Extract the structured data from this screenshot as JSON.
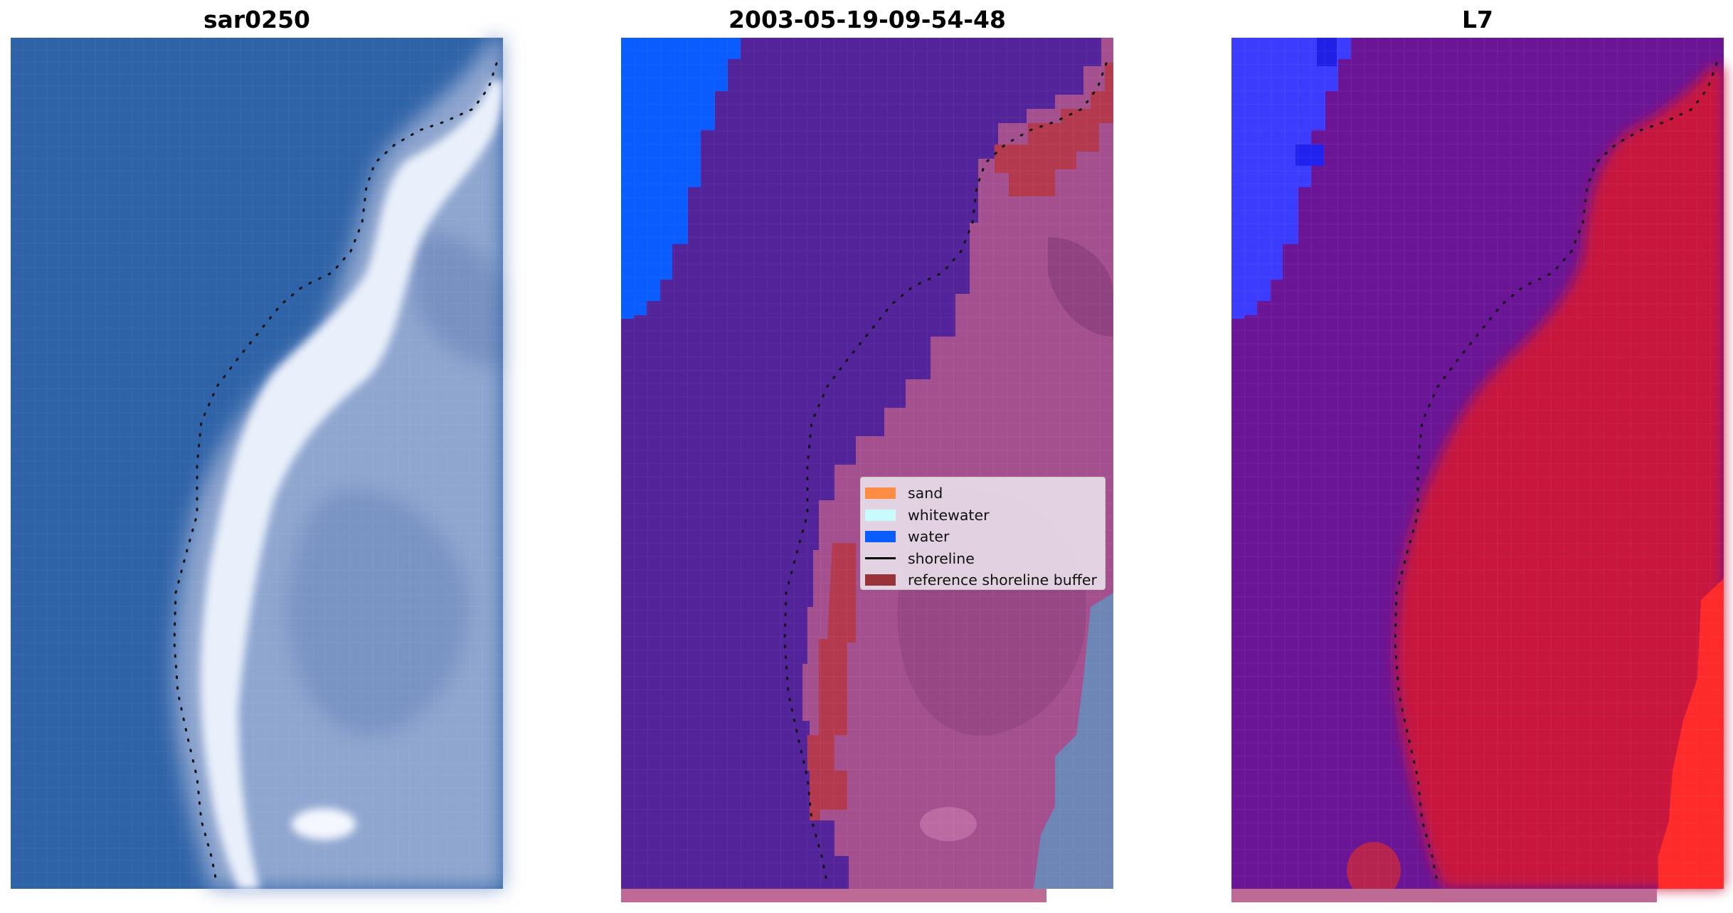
{
  "panels": [
    {
      "title": "sar0250",
      "content": "RGB satellite image of a shoreline (ocean left, coast right)"
    },
    {
      "title": "2003-05-19-09-54-48",
      "content": "Classified image overlay with detected shoreline"
    },
    {
      "title": "L7",
      "content": "Water index image (blue=water, red=land)"
    }
  ],
  "legend": {
    "items": [
      {
        "label": "sand",
        "color": "#ff8c42",
        "type": "patch"
      },
      {
        "label": "whitewater",
        "color": "#c8fbfb",
        "type": "patch"
      },
      {
        "label": "water",
        "color": "#0a5cff",
        "type": "patch"
      },
      {
        "label": "shoreline",
        "color": "#000000",
        "type": "line"
      },
      {
        "label": "reference shoreline buffer",
        "color": "#99333a",
        "type": "patch"
      }
    ]
  },
  "colors": {
    "ocean_rgb": "#2f63a8",
    "land_rgb": "#8fa6cf",
    "whitewater_rgb": "#eef2fb",
    "class_purple": "#53239a",
    "class_land_pink": "#a4508e",
    "class_water": "#0a5cff",
    "buffer_red": "#b33a4e",
    "index_water_purple": "#6a1596",
    "index_land_red": "#c8183c",
    "index_blue": "#3b3cff",
    "index_bright_red": "#ff2a2a"
  }
}
